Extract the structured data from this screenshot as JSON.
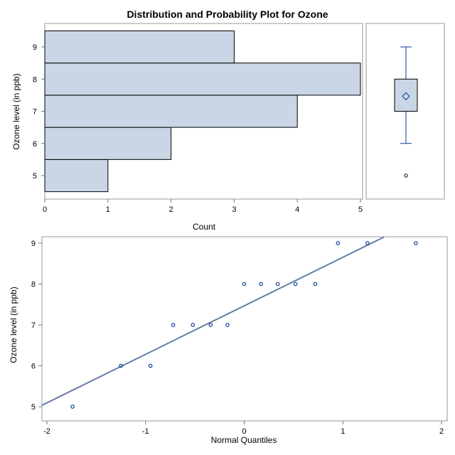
{
  "chart_data": [
    {
      "type": "bar",
      "orientation": "horizontal",
      "title": "Distribution and Probability Plot for Ozone",
      "xlabel": "Count",
      "ylabel": "Ozone level (in ppb)",
      "categories": [
        5,
        6,
        7,
        8,
        9
      ],
      "values": [
        1,
        2,
        4,
        5,
        3
      ],
      "xlim": [
        0,
        5
      ],
      "ylim": [
        4.5,
        9.5
      ],
      "xticks": [
        "0",
        "1",
        "2",
        "3",
        "4",
        "5"
      ],
      "yticks": [
        "5",
        "6",
        "7",
        "8",
        "9"
      ],
      "bar_color": "#cad5e5"
    },
    {
      "type": "box",
      "min_whisker": 6,
      "q1": 7,
      "median": 8,
      "q3": 8,
      "max_whisker": 9,
      "mean": 7.467,
      "outliers": [
        5
      ]
    },
    {
      "type": "scatter",
      "xlabel": "Normal Quantiles",
      "ylabel": "Ozone level (in ppb)",
      "xlim": [
        -2,
        2
      ],
      "ylim": [
        5,
        9
      ],
      "xticks": [
        "-2",
        "-1",
        "0",
        "1",
        "2"
      ],
      "yticks": [
        "5",
        "6",
        "7",
        "8",
        "9"
      ],
      "x": [
        -1.74,
        -1.25,
        -0.95,
        -0.72,
        -0.52,
        -0.34,
        -0.17,
        0,
        0.17,
        0.34,
        0.52,
        0.72,
        0.95,
        1.25,
        1.74
      ],
      "y": [
        5,
        6,
        6,
        7,
        7,
        7,
        7,
        8,
        8,
        8,
        8,
        8,
        9,
        9,
        9
      ],
      "reference_line": {
        "intercept": 7.467,
        "slope": 1.187
      },
      "marker_color": "#0b3a9b",
      "line_color": "#667fa2"
    }
  ]
}
